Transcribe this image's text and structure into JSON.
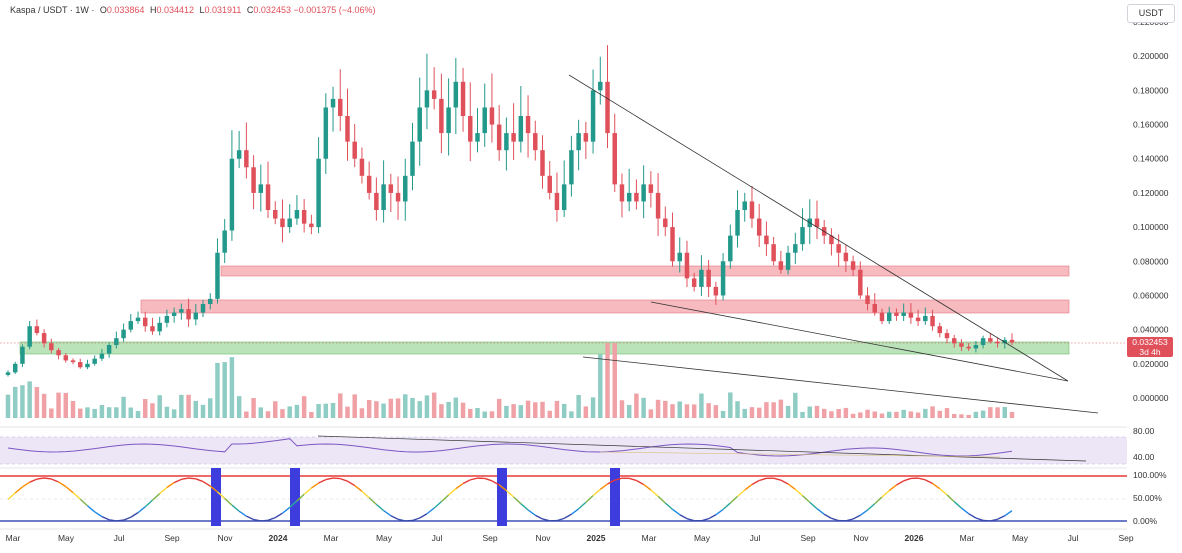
{
  "header": {
    "symbol": "Kaspa / USDT · 1W ·",
    "open_label": "O",
    "open": "0.033864",
    "high_label": "H",
    "high": "0.034412",
    "low_label": "L",
    "low": "0.031911",
    "close_label": "C",
    "close": "0.032453",
    "change": "−0.001375 (−4.06%)"
  },
  "currency": "USDT",
  "last_price": {
    "value": "0.032453",
    "countdown": "3d 4h"
  },
  "colors": {
    "up": "#22998a",
    "down": "#e0505a",
    "resistance_zone": "#f4a3a8",
    "support_zone": "#a4d9a3",
    "rsi_band": "#ece6f7"
  },
  "chart_data": {
    "type": "candlestick",
    "price_axis": {
      "ylim": [
        -0.02,
        0.22
      ],
      "ticks": [
        "0.220000",
        "0.200000",
        "0.180000",
        "0.160000",
        "0.140000",
        "0.120000",
        "0.100000",
        "0.080000",
        "0.060000",
        "0.040000",
        "0.020000",
        "0.000000"
      ]
    },
    "time_axis": {
      "ticks": [
        "Mar",
        "May",
        "Jul",
        "Sep",
        "Nov",
        "2024",
        "Mar",
        "May",
        "Jul",
        "Sep",
        "Nov",
        "2025",
        "Mar",
        "May",
        "Jul",
        "Sep",
        "Nov",
        "2026",
        "Mar",
        "May",
        "Jul",
        "Sep"
      ]
    },
    "weekly_closes_sampled": [
      0.015,
      0.02,
      0.03,
      0.042,
      0.038,
      0.032,
      0.028,
      0.025,
      0.022,
      0.021,
      0.018,
      0.02,
      0.023,
      0.026,
      0.031,
      0.035,
      0.04,
      0.045,
      0.047,
      0.042,
      0.039,
      0.044,
      0.048,
      0.05,
      0.052,
      0.046,
      0.05,
      0.055,
      0.058,
      0.085,
      0.098,
      0.14,
      0.145,
      0.135,
      0.12,
      0.125,
      0.11,
      0.105,
      0.1,
      0.105,
      0.11,
      0.102,
      0.1,
      0.14,
      0.17,
      0.175,
      0.165,
      0.15,
      0.14,
      0.13,
      0.12,
      0.11,
      0.125,
      0.12,
      0.115,
      0.13,
      0.15,
      0.17,
      0.18,
      0.175,
      0.155,
      0.17,
      0.185,
      0.165,
      0.15,
      0.155,
      0.17,
      0.16,
      0.145,
      0.155,
      0.15,
      0.165,
      0.155,
      0.145,
      0.13,
      0.12,
      0.11,
      0.125,
      0.145,
      0.155,
      0.15,
      0.18,
      0.185,
      0.155,
      0.125,
      0.115,
      0.12,
      0.115,
      0.125,
      0.12,
      0.105,
      0.1,
      0.08,
      0.085,
      0.07,
      0.065,
      0.075,
      0.065,
      0.06,
      0.08,
      0.095,
      0.11,
      0.115,
      0.105,
      0.095,
      0.09,
      0.08,
      0.075,
      0.085,
      0.09,
      0.1,
      0.105,
      0.1,
      0.095,
      0.09,
      0.085,
      0.08,
      0.075,
      0.06,
      0.055,
      0.05,
      0.045,
      0.05,
      0.048,
      0.05,
      0.047,
      0.045,
      0.048,
      0.042,
      0.038,
      0.035,
      0.032,
      0.03,
      0.029,
      0.031,
      0.035,
      0.033,
      0.032,
      0.034,
      0.03245
    ],
    "zones": [
      {
        "type": "resistance",
        "range": [
          0.074,
          0.0785
        ]
      },
      {
        "type": "resistance",
        "range": [
          0.051,
          0.058
        ]
      },
      {
        "type": "support",
        "range": [
          0.0255,
          0.032
        ]
      }
    ],
    "rsi": {
      "ticks": [
        "80.00",
        "40.00"
      ],
      "band": [
        40,
        70
      ]
    },
    "stoch": {
      "ticks": [
        "100.00%",
        "50.00%",
        "0.00%"
      ]
    }
  }
}
